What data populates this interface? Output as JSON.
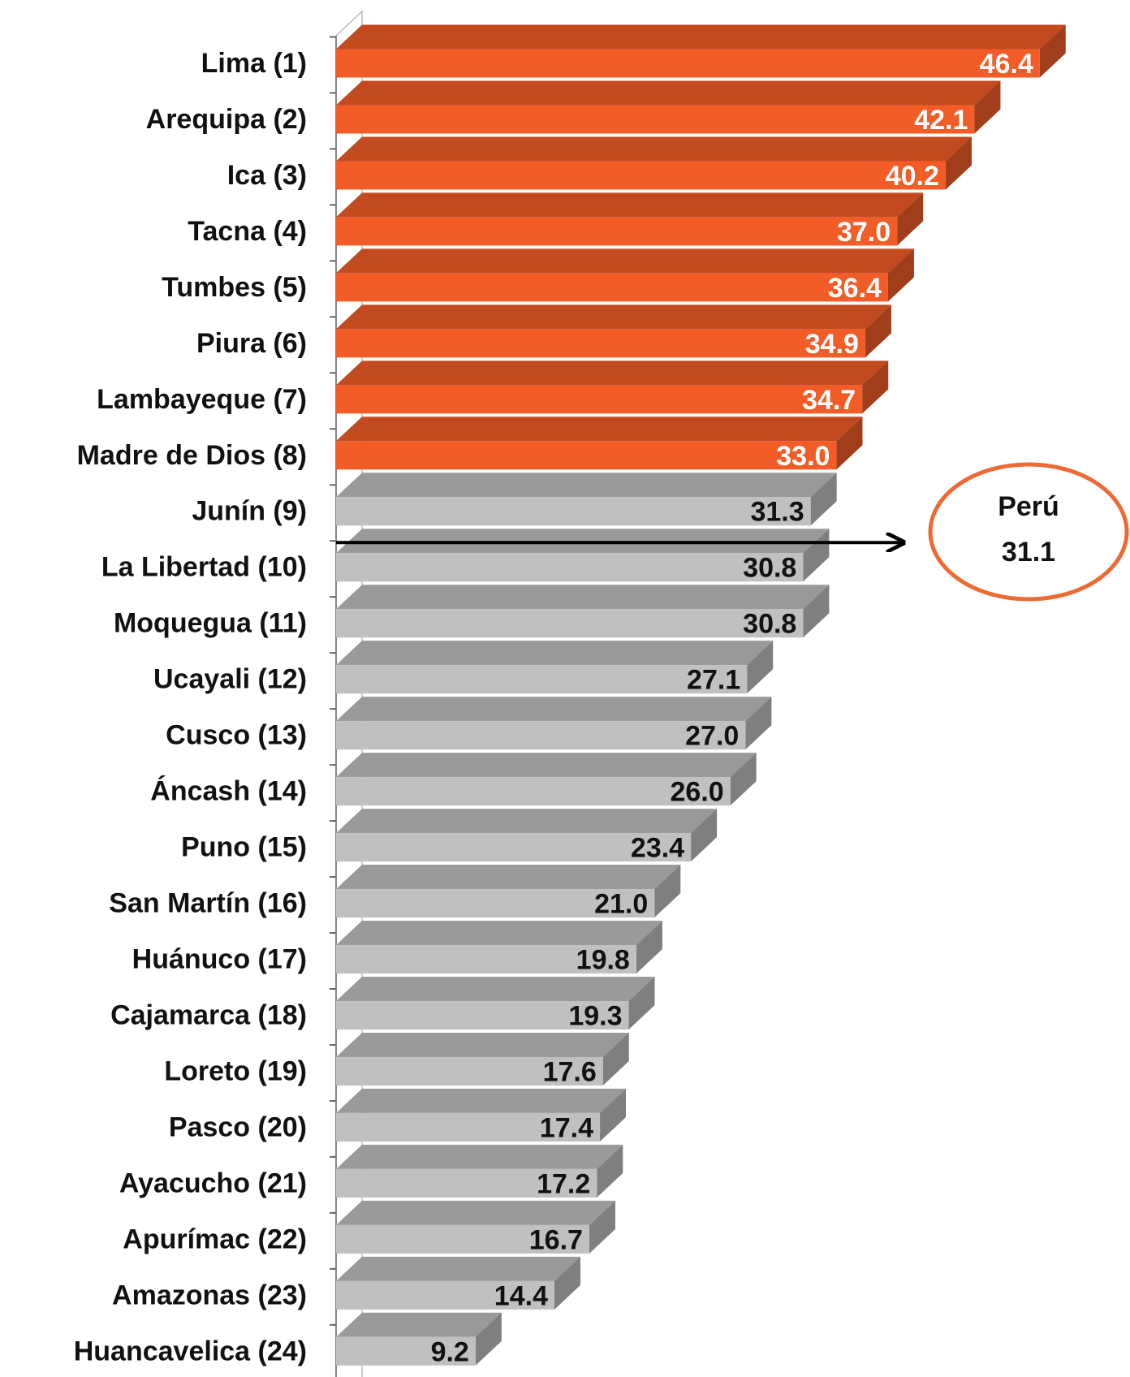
{
  "chart_data": {
    "type": "bar3d-horizontal",
    "categories": [
      "Lima (1)",
      "Arequipa (2)",
      "Ica (3)",
      "Tacna (4)",
      "Tumbes (5)",
      "Piura (6)",
      "Lambayeque (7)",
      "Madre de Dios (8)",
      "Junín (9)",
      "La Libertad (10)",
      "Moquegua (11)",
      "Ucayali (12)",
      "Cusco (13)",
      "Áncash (14)",
      "Puno (15)",
      "San Martín (16)",
      "Huánuco (17)",
      "Cajamarca (18)",
      "Loreto (19)",
      "Pasco (20)",
      "Ayacucho (21)",
      "Apurímac (22)",
      "Amazonas (23)",
      "Huancavelica (24)"
    ],
    "values": [
      46.4,
      42.1,
      40.2,
      37.0,
      36.4,
      34.9,
      34.7,
      33.0,
      31.3,
      30.8,
      30.8,
      27.1,
      27.0,
      26.0,
      23.4,
      21.0,
      19.8,
      19.3,
      17.6,
      17.4,
      17.2,
      16.7,
      14.4,
      9.2
    ],
    "value_labels": [
      "46.4",
      "42.1",
      "40.2",
      "37.0",
      "36.4",
      "34.9",
      "34.7",
      "33.0",
      "31.3",
      "30.8",
      "30.8",
      "27.1",
      "27.0",
      "26.0",
      "23.4",
      "21.0",
      "19.8",
      "19.3",
      "17.6",
      "17.4",
      "17.2",
      "16.7",
      "14.4",
      "9.2"
    ],
    "colors": [
      "#f25c27",
      "#f25c27",
      "#f25c27",
      "#f25c27",
      "#f25c27",
      "#f25c27",
      "#f25c27",
      "#f25c27",
      "#c0c0c0",
      "#c0c0c0",
      "#c0c0c0",
      "#c0c0c0",
      "#c0c0c0",
      "#c0c0c0",
      "#c0c0c0",
      "#c0c0c0",
      "#c0c0c0",
      "#c0c0c0",
      "#c0c0c0",
      "#c0c0c0",
      "#c0c0c0",
      "#c0c0c0",
      "#c0c0c0",
      "#c0c0c0"
    ],
    "label_colors": [
      "#ffffff",
      "#ffffff",
      "#ffffff",
      "#ffffff",
      "#ffffff",
      "#ffffff",
      "#ffffff",
      "#ffffff",
      "#111111",
      "#111111",
      "#111111",
      "#111111",
      "#111111",
      "#111111",
      "#111111",
      "#111111",
      "#111111",
      "#111111",
      "#111111",
      "#111111",
      "#111111",
      "#111111",
      "#111111",
      "#111111"
    ],
    "reference": {
      "label": "Perú",
      "value": 31.1,
      "color": "#ee6a35"
    }
  }
}
